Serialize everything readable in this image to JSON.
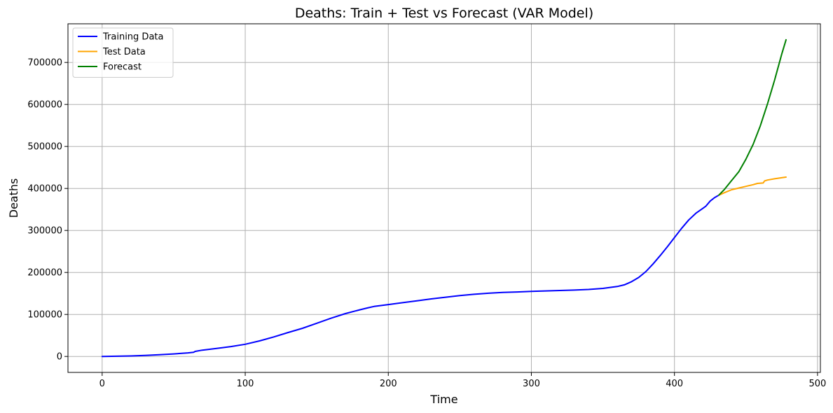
{
  "chart_data": {
    "type": "line",
    "title": "Deaths: Train + Test vs Forecast (VAR Model)",
    "xlabel": "Time",
    "ylabel": "Deaths",
    "xlim": [
      -23.9,
      502
    ],
    "ylim": [
      -38000,
      792000
    ],
    "xticks": [
      0,
      100,
      200,
      300,
      400,
      500
    ],
    "xtick_labels": [
      "0",
      "100",
      "200",
      "300",
      "400",
      "500"
    ],
    "yticks": [
      0,
      100000,
      200000,
      300000,
      400000,
      500000,
      600000,
      700000
    ],
    "ytick_labels": [
      "0",
      "100000",
      "200000",
      "300000",
      "400000",
      "500000",
      "600000",
      "700000"
    ],
    "grid": true,
    "legend_position": "top-left",
    "series": [
      {
        "name": "Training Data",
        "color": "#0000ff",
        "x": [
          0,
          10,
          20,
          30,
          40,
          50,
          60,
          64,
          65,
          70,
          80,
          90,
          100,
          110,
          120,
          130,
          140,
          150,
          160,
          170,
          180,
          186,
          190,
          200,
          210,
          220,
          230,
          240,
          250,
          260,
          270,
          280,
          290,
          300,
          310,
          320,
          330,
          340,
          350,
          360,
          365,
          370,
          375,
          380,
          385,
          390,
          395,
          400,
          405,
          410,
          415,
          420,
          422,
          425,
          428,
          431
        ],
        "y": [
          0,
          500,
          1200,
          2500,
          4000,
          6000,
          8500,
          10000,
          12000,
          15000,
          19000,
          23500,
          29000,
          37000,
          46500,
          57000,
          67000,
          79000,
          91000,
          102000,
          111000,
          116000,
          119000,
          123500,
          128000,
          132500,
          137000,
          141000,
          145000,
          148000,
          150500,
          152500,
          153500,
          155000,
          156000,
          157000,
          158000,
          159500,
          162000,
          166500,
          170500,
          178000,
          188000,
          202000,
          220000,
          240000,
          261000,
          283000,
          305000,
          325000,
          341000,
          353000,
          358000,
          370000,
          378000,
          384000
        ]
      },
      {
        "name": "Test Data",
        "color": "#ffa500",
        "x": [
          431,
          435,
          440,
          445,
          450,
          455,
          458,
          462,
          463,
          465,
          470,
          475,
          478
        ],
        "y": [
          384000,
          390000,
          397000,
          401000,
          405000,
          409000,
          412000,
          413000,
          418000,
          420000,
          423000,
          425500,
          427000
        ]
      },
      {
        "name": "Forecast",
        "color": "#008000",
        "x": [
          431,
          435,
          440,
          445,
          450,
          455,
          460,
          465,
          470,
          475,
          478
        ],
        "y": [
          384000,
          398000,
          419000,
          440000,
          470000,
          505000,
          549000,
          601000,
          658000,
          720000,
          754000
        ]
      }
    ]
  }
}
